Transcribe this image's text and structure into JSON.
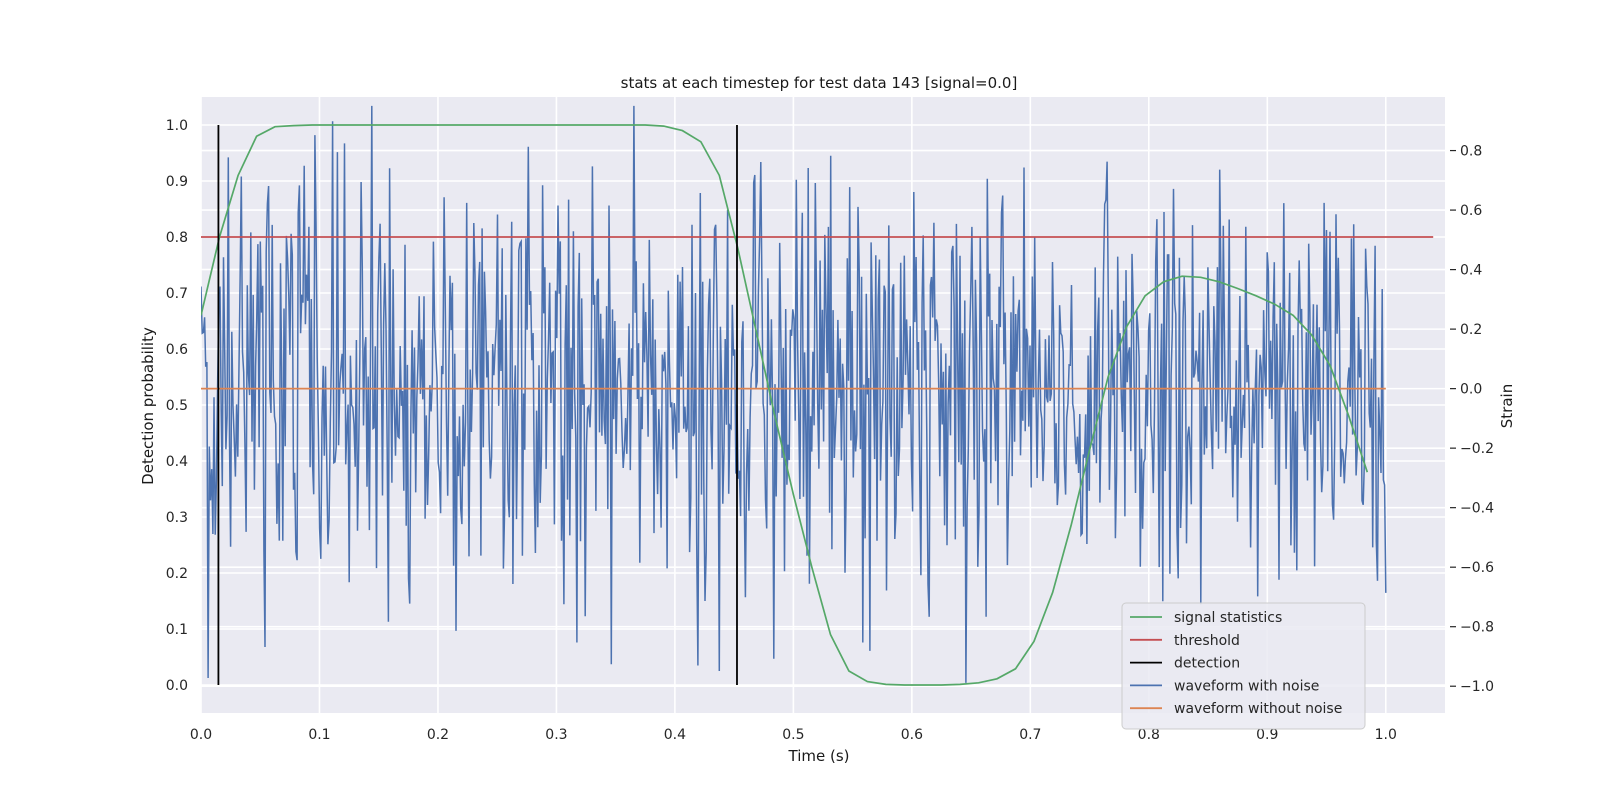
{
  "chart_data": {
    "type": "line",
    "title": "stats at each timestep for test data 143 [signal=0.0]",
    "xlabel": "Time (s)",
    "ylabel": "Detection probability",
    "y2label": "Strain",
    "xlim": [
      0.0,
      1.05
    ],
    "ylim": [
      -0.05,
      1.05
    ],
    "y2lim": [
      -1.09,
      0.98
    ],
    "xticks": [
      "0.0",
      "0.1",
      "0.2",
      "0.3",
      "0.4",
      "0.5",
      "0.6",
      "0.7",
      "0.8",
      "0.9",
      "1.0"
    ],
    "yticks": [
      "0.0",
      "0.1",
      "0.2",
      "0.3",
      "0.4",
      "0.5",
      "0.6",
      "0.7",
      "0.8",
      "0.9",
      "1.0"
    ],
    "y2ticks": [
      "−1.0",
      "−0.8",
      "−0.6",
      "−0.4",
      "−0.2",
      "0.0",
      "0.2",
      "0.4",
      "0.6",
      "0.8"
    ],
    "grid": true,
    "legend_position": "lower-right",
    "series": [
      {
        "name": "signal statistics",
        "axis": "left",
        "color": "#55a868",
        "x": [
          0.0,
          0.0156,
          0.0313,
          0.0469,
          0.0625,
          0.0781,
          0.0938,
          0.1094,
          0.125,
          0.25,
          0.375,
          0.3906,
          0.4063,
          0.4219,
          0.4375,
          0.4531,
          0.4688,
          0.4844,
          0.5,
          0.5156,
          0.5313,
          0.5469,
          0.5625,
          0.5781,
          0.5938,
          0.625,
          0.6406,
          0.6563,
          0.6719,
          0.6875,
          0.7031,
          0.7188,
          0.7344,
          0.75,
          0.7656,
          0.7813,
          0.7969,
          0.8125,
          0.8281,
          0.8438,
          0.8594,
          0.875,
          0.8906,
          0.9063,
          0.9219,
          0.9375,
          0.9531,
          0.9688,
          0.9844
        ],
        "values": [
          0.66,
          0.8,
          0.91,
          0.98,
          0.997,
          0.999,
          1.0,
          1.0,
          1.0,
          1.0,
          1.0,
          0.998,
          0.99,
          0.97,
          0.91,
          0.78,
          0.63,
          0.48,
          0.34,
          0.21,
          0.09,
          0.025,
          0.006,
          0.001,
          0.0,
          0.0,
          0.001,
          0.004,
          0.011,
          0.029,
          0.078,
          0.165,
          0.285,
          0.42,
          0.55,
          0.64,
          0.695,
          0.72,
          0.73,
          0.728,
          0.72,
          0.708,
          0.695,
          0.68,
          0.66,
          0.625,
          0.57,
          0.48,
          0.38
        ]
      },
      {
        "name": "threshold",
        "axis": "left",
        "color": "#c44e52",
        "x": [
          0.0,
          1.04
        ],
        "values": [
          0.8,
          0.8
        ]
      },
      {
        "name": "detection",
        "axis": "left",
        "color": "#000000",
        "x": [
          0.0147,
          0.4524
        ],
        "values": [
          1.0,
          1.0
        ],
        "type": "vlines"
      },
      {
        "name": "waveform with noise",
        "axis": "right",
        "color": "#4c72b0",
        "x_start": 0.0,
        "x_end": 1.0,
        "n_points": 1000,
        "std": 0.35,
        "range": [
          -1.0,
          0.95
        ]
      },
      {
        "name": "waveform without noise",
        "axis": "right",
        "color": "#dd8452",
        "x": [
          0.0,
          1.0
        ],
        "values": [
          0.0,
          0.0
        ]
      }
    ]
  }
}
